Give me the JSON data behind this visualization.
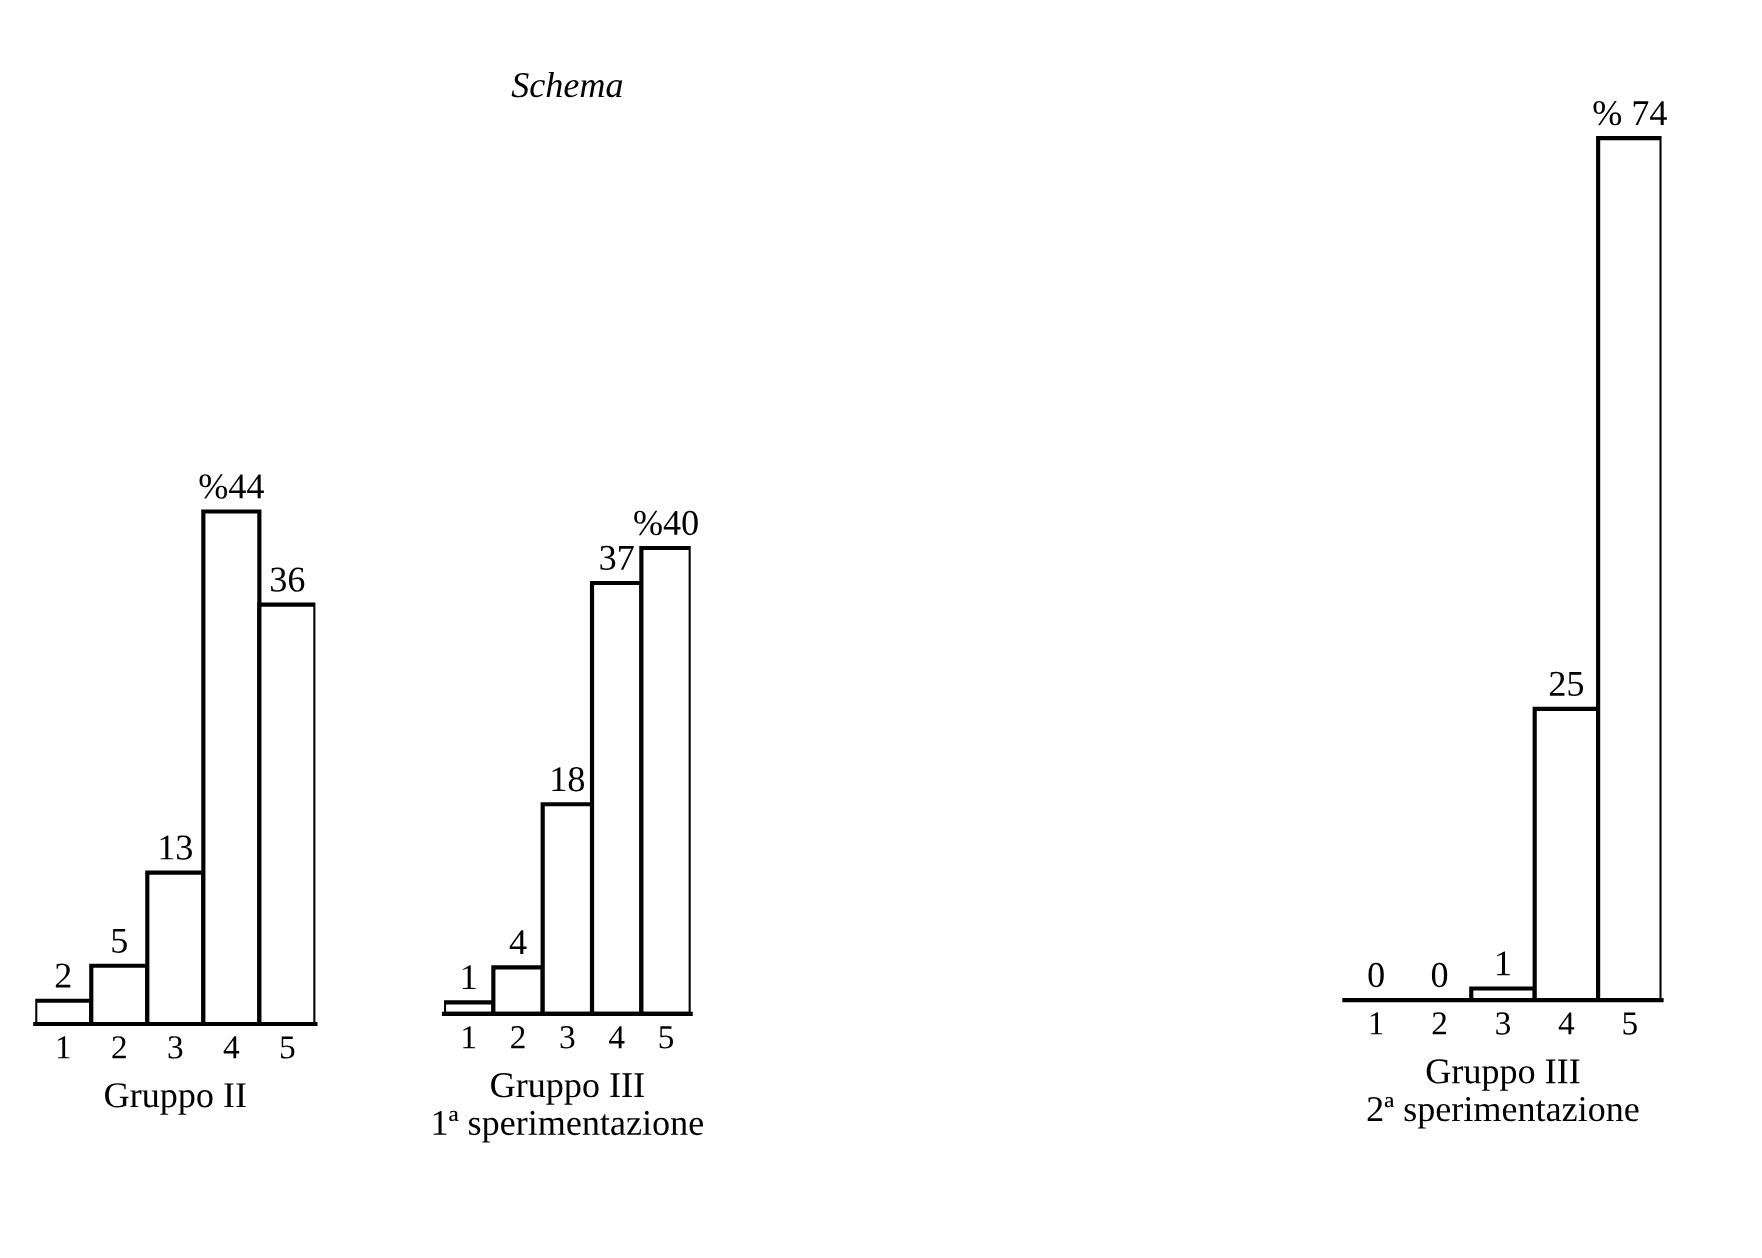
{
  "chart_data": [
    {
      "type": "bar",
      "categories": [
        "1",
        "2",
        "3",
        "4",
        "5"
      ],
      "values": [
        2,
        5,
        13,
        44,
        36
      ],
      "value_labels": [
        "2",
        "5",
        "13",
        "%44",
        "36"
      ],
      "color": "#ffffff",
      "xlabel": "Gruppo II",
      "grid": false,
      "legend": false
    },
    {
      "type": "bar",
      "title": "Schema",
      "categories": [
        "1",
        "2",
        "3",
        "4",
        "5"
      ],
      "values": [
        1,
        4,
        18,
        37,
        40
      ],
      "value_labels": [
        "1",
        "4",
        "18",
        "37",
        "%40"
      ],
      "color": "#ffffff",
      "xlabel": "Gruppo III\n1ª sperimentazione",
      "grid": false,
      "legend": false
    },
    {
      "type": "bar",
      "categories": [
        "1",
        "2",
        "3",
        "4",
        "5"
      ],
      "values": [
        0,
        0,
        1,
        25,
        74
      ],
      "value_labels": [
        "0",
        "0",
        "1",
        "25",
        "% 74"
      ],
      "color": "#ffffff",
      "xlabel": "Gruppo III\n2ª sperimentazione",
      "grid": false,
      "legend": false
    }
  ]
}
